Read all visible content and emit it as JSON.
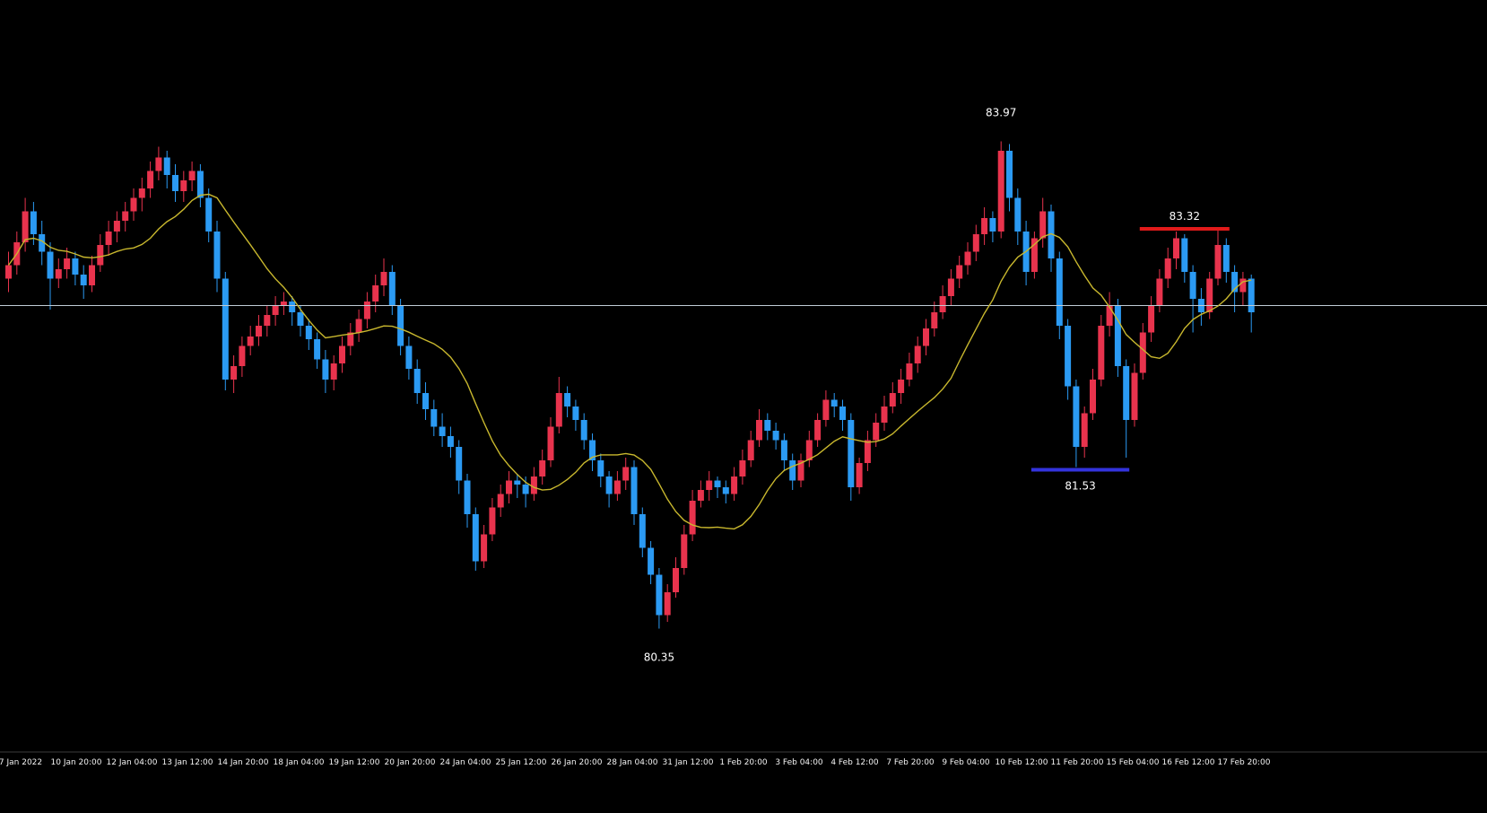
{
  "chart_data": {
    "type": "candlestick",
    "title": "",
    "xlabel": "",
    "ylabel": "",
    "ylim": [
      78.98,
      85.02
    ],
    "grid": false,
    "legend": false,
    "colors": {
      "background": "#000000",
      "bull": "#e8334d",
      "bear": "#2b9af3",
      "ma_line": "#c9b82e",
      "current_price_line": "#c0ccd6",
      "resistance_line": "#e11a1a",
      "support_line": "#3333dd",
      "axis_separator": "#3c3c3c",
      "text": "#ffffff"
    },
    "ma": {
      "period": 13
    },
    "time_labels": [
      "7 Jan 2022",
      "10 Jan 20:00",
      "12 Jan 04:00",
      "13 Jan 12:00",
      "14 Jan 20:00",
      "18 Jan 04:00",
      "19 Jan 12:00",
      "20 Jan 20:00",
      "24 Jan 04:00",
      "25 Jan 12:00",
      "26 Jan 20:00",
      "28 Jan 04:00",
      "31 Jan 12:00",
      "1 Feb 20:00",
      "3 Feb 04:00",
      "4 Feb 12:00",
      "7 Feb 20:00",
      "9 Feb 04:00",
      "10 Feb 12:00",
      "11 Feb 20:00",
      "15 Feb 04:00",
      "16 Feb 12:00",
      "17 Feb 20:00"
    ],
    "annotations": {
      "high_label": {
        "text": "83.97",
        "candle_index": 119,
        "position": "above-high"
      },
      "low_label": {
        "text": "80.35",
        "candle_index": 78,
        "position": "below-low"
      },
      "resistance_line": {
        "price": 83.32,
        "label": "83.32",
        "from_index": 136,
        "to_index": 146
      },
      "support_line": {
        "price": 81.53,
        "label": "81.53",
        "from_index": 123,
        "to_index": 134
      },
      "current_price_line": {
        "price": 82.75
      }
    },
    "candles": [
      [
        82.95,
        83.15,
        82.85,
        83.05
      ],
      [
        83.05,
        83.3,
        82.98,
        83.22
      ],
      [
        83.22,
        83.55,
        83.15,
        83.45
      ],
      [
        83.45,
        83.52,
        83.2,
        83.28
      ],
      [
        83.28,
        83.38,
        83.05,
        83.15
      ],
      [
        83.15,
        83.22,
        82.72,
        82.95
      ],
      [
        82.95,
        83.1,
        82.88,
        83.02
      ],
      [
        83.02,
        83.18,
        82.95,
        83.1
      ],
      [
        83.1,
        83.15,
        82.9,
        82.98
      ],
      [
        82.98,
        83.05,
        82.8,
        82.9
      ],
      [
        82.9,
        83.12,
        82.85,
        83.05
      ],
      [
        83.05,
        83.28,
        83.0,
        83.2
      ],
      [
        83.2,
        83.38,
        83.12,
        83.3
      ],
      [
        83.3,
        83.45,
        83.22,
        83.38
      ],
      [
        83.38,
        83.52,
        83.3,
        83.45
      ],
      [
        83.45,
        83.62,
        83.38,
        83.55
      ],
      [
        83.55,
        83.7,
        83.45,
        83.62
      ],
      [
        83.62,
        83.82,
        83.55,
        83.75
      ],
      [
        83.75,
        83.93,
        83.68,
        83.85
      ],
      [
        83.85,
        83.9,
        83.62,
        83.72
      ],
      [
        83.72,
        83.8,
        83.52,
        83.6
      ],
      [
        83.6,
        83.75,
        83.52,
        83.68
      ],
      [
        83.68,
        83.82,
        83.6,
        83.75
      ],
      [
        83.75,
        83.8,
        83.48,
        83.55
      ],
      [
        83.55,
        83.62,
        83.22,
        83.3
      ],
      [
        83.3,
        83.38,
        82.85,
        82.95
      ],
      [
        82.95,
        83.0,
        82.12,
        82.2
      ],
      [
        82.2,
        82.38,
        82.1,
        82.3
      ],
      [
        82.3,
        82.52,
        82.22,
        82.45
      ],
      [
        82.45,
        82.6,
        82.38,
        82.52
      ],
      [
        82.52,
        82.68,
        82.45,
        82.6
      ],
      [
        82.6,
        82.75,
        82.52,
        82.68
      ],
      [
        82.68,
        82.82,
        82.6,
        82.75
      ],
      [
        82.75,
        82.85,
        82.68,
        82.78
      ],
      [
        82.78,
        82.82,
        82.6,
        82.7
      ],
      [
        82.7,
        82.75,
        82.52,
        82.6
      ],
      [
        82.6,
        82.65,
        82.42,
        82.5
      ],
      [
        82.5,
        82.55,
        82.28,
        82.35
      ],
      [
        82.35,
        82.42,
        82.1,
        82.2
      ],
      [
        82.2,
        82.38,
        82.12,
        82.32
      ],
      [
        82.32,
        82.52,
        82.25,
        82.45
      ],
      [
        82.45,
        82.62,
        82.38,
        82.55
      ],
      [
        82.55,
        82.72,
        82.48,
        82.65
      ],
      [
        82.65,
        82.85,
        82.58,
        82.78
      ],
      [
        82.78,
        82.98,
        82.7,
        82.9
      ],
      [
        82.9,
        83.1,
        82.82,
        83.0
      ],
      [
        83.0,
        83.05,
        82.68,
        82.75
      ],
      [
        82.75,
        82.8,
        82.38,
        82.45
      ],
      [
        82.45,
        82.52,
        82.2,
        82.28
      ],
      [
        82.28,
        82.35,
        82.02,
        82.1
      ],
      [
        82.1,
        82.18,
        81.9,
        81.98
      ],
      [
        81.98,
        82.05,
        81.78,
        81.85
      ],
      [
        81.85,
        81.95,
        81.7,
        81.78
      ],
      [
        81.78,
        81.85,
        81.62,
        81.7
      ],
      [
        81.7,
        81.75,
        81.35,
        81.45
      ],
      [
        81.45,
        81.5,
        81.1,
        81.2
      ],
      [
        81.2,
        81.25,
        80.78,
        80.85
      ],
      [
        80.85,
        81.12,
        80.8,
        81.05
      ],
      [
        81.05,
        81.32,
        81.0,
        81.25
      ],
      [
        81.25,
        81.42,
        81.18,
        81.35
      ],
      [
        81.35,
        81.52,
        81.28,
        81.45
      ],
      [
        81.45,
        81.5,
        81.32,
        81.42
      ],
      [
        81.42,
        81.48,
        81.25,
        81.35
      ],
      [
        81.35,
        81.55,
        81.3,
        81.48
      ],
      [
        81.48,
        81.68,
        81.42,
        81.6
      ],
      [
        81.6,
        81.92,
        81.55,
        81.85
      ],
      [
        81.85,
        82.22,
        81.8,
        82.1
      ],
      [
        82.1,
        82.15,
        81.92,
        82.0
      ],
      [
        82.0,
        82.05,
        81.82,
        81.9
      ],
      [
        81.9,
        81.95,
        81.68,
        81.75
      ],
      [
        81.75,
        81.8,
        81.52,
        81.6
      ],
      [
        81.6,
        81.65,
        81.4,
        81.48
      ],
      [
        81.48,
        81.52,
        81.25,
        81.35
      ],
      [
        81.35,
        81.52,
        81.3,
        81.45
      ],
      [
        81.45,
        81.62,
        81.38,
        81.55
      ],
      [
        81.55,
        81.6,
        81.12,
        81.2
      ],
      [
        81.2,
        81.25,
        80.88,
        80.95
      ],
      [
        80.95,
        81.0,
        80.68,
        80.75
      ],
      [
        80.75,
        80.8,
        80.35,
        80.45
      ],
      [
        80.45,
        80.68,
        80.4,
        80.62
      ],
      [
        80.62,
        80.88,
        80.58,
        80.8
      ],
      [
        80.8,
        81.12,
        80.75,
        81.05
      ],
      [
        81.05,
        81.38,
        81.0,
        81.3
      ],
      [
        81.3,
        81.45,
        81.25,
        81.38
      ],
      [
        81.38,
        81.52,
        81.3,
        81.45
      ],
      [
        81.45,
        81.48,
        81.32,
        81.4
      ],
      [
        81.4,
        81.45,
        81.28,
        81.35
      ],
      [
        81.35,
        81.55,
        81.3,
        81.48
      ],
      [
        81.48,
        81.68,
        81.42,
        81.6
      ],
      [
        81.6,
        81.82,
        81.55,
        81.75
      ],
      [
        81.75,
        81.98,
        81.7,
        81.9
      ],
      [
        81.9,
        81.95,
        81.75,
        81.82
      ],
      [
        81.82,
        81.88,
        81.68,
        81.75
      ],
      [
        81.75,
        81.8,
        81.52,
        81.6
      ],
      [
        81.6,
        81.65,
        81.38,
        81.45
      ],
      [
        81.45,
        81.65,
        81.4,
        81.6
      ],
      [
        81.6,
        81.82,
        81.55,
        81.75
      ],
      [
        81.75,
        81.95,
        81.7,
        81.9
      ],
      [
        81.9,
        82.12,
        81.85,
        82.05
      ],
      [
        82.05,
        82.1,
        81.92,
        82.0
      ],
      [
        82.0,
        82.05,
        81.82,
        81.9
      ],
      [
        81.9,
        81.95,
        81.3,
        81.4
      ],
      [
        81.4,
        81.62,
        81.35,
        81.58
      ],
      [
        81.58,
        81.82,
        81.52,
        81.75
      ],
      [
        81.75,
        81.95,
        81.7,
        81.88
      ],
      [
        81.88,
        82.08,
        81.82,
        82.0
      ],
      [
        82.0,
        82.18,
        81.95,
        82.1
      ],
      [
        82.1,
        82.28,
        82.02,
        82.2
      ],
      [
        82.2,
        82.4,
        82.15,
        82.32
      ],
      [
        82.32,
        82.52,
        82.25,
        82.45
      ],
      [
        82.45,
        82.65,
        82.38,
        82.58
      ],
      [
        82.58,
        82.78,
        82.52,
        82.7
      ],
      [
        82.7,
        82.9,
        82.65,
        82.82
      ],
      [
        82.82,
        83.02,
        82.75,
        82.95
      ],
      [
        82.95,
        83.12,
        82.88,
        83.05
      ],
      [
        83.05,
        83.22,
        82.98,
        83.15
      ],
      [
        83.15,
        83.35,
        83.08,
        83.28
      ],
      [
        83.28,
        83.48,
        83.2,
        83.4
      ],
      [
        83.4,
        83.45,
        83.22,
        83.3
      ],
      [
        83.3,
        83.97,
        83.25,
        83.9
      ],
      [
        83.9,
        83.95,
        83.45,
        83.55
      ],
      [
        83.55,
        83.62,
        83.2,
        83.3
      ],
      [
        83.3,
        83.38,
        82.9,
        83.0
      ],
      [
        83.0,
        83.3,
        82.95,
        83.25
      ],
      [
        83.25,
        83.55,
        83.18,
        83.45
      ],
      [
        83.45,
        83.5,
        83.0,
        83.1
      ],
      [
        83.1,
        83.15,
        82.5,
        82.6
      ],
      [
        82.6,
        82.65,
        82.05,
        82.15
      ],
      [
        82.15,
        82.2,
        81.55,
        81.7
      ],
      [
        81.7,
        82.0,
        81.62,
        81.95
      ],
      [
        81.95,
        82.28,
        81.9,
        82.2
      ],
      [
        82.2,
        82.68,
        82.15,
        82.6
      ],
      [
        82.6,
        82.85,
        82.52,
        82.75
      ],
      [
        82.75,
        82.8,
        82.22,
        82.3
      ],
      [
        82.3,
        82.35,
        81.62,
        81.9
      ],
      [
        81.9,
        82.32,
        81.85,
        82.25
      ],
      [
        82.25,
        82.62,
        82.2,
        82.55
      ],
      [
        82.55,
        82.82,
        82.48,
        82.75
      ],
      [
        82.75,
        83.02,
        82.7,
        82.95
      ],
      [
        82.95,
        83.18,
        82.88,
        83.1
      ],
      [
        83.1,
        83.3,
        83.02,
        83.25
      ],
      [
        83.25,
        83.28,
        82.92,
        83.0
      ],
      [
        83.0,
        83.05,
        82.55,
        82.8
      ],
      [
        82.8,
        82.88,
        82.6,
        82.7
      ],
      [
        82.7,
        83.0,
        82.65,
        82.95
      ],
      [
        82.95,
        83.32,
        82.9,
        83.2
      ],
      [
        83.2,
        83.25,
        82.92,
        83.0
      ],
      [
        83.0,
        83.05,
        82.7,
        82.85
      ],
      [
        82.85,
        83.0,
        82.75,
        82.95
      ],
      [
        82.95,
        82.98,
        82.55,
        82.7
      ]
    ]
  }
}
